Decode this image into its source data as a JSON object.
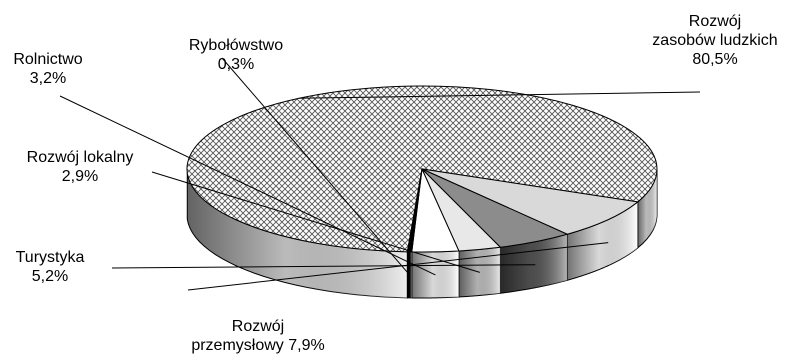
{
  "chart_data": {
    "type": "pie",
    "title": "",
    "slices": [
      {
        "label": "Rozwój zasobów ludzkich",
        "label_lines": [
          "Rozwój",
          "zasobów ludzkich",
          "80,5%"
        ],
        "value": 80.5,
        "value_text": "80,5%",
        "fill": "crosshatch",
        "side_color": "#dcdcdc"
      },
      {
        "label": "Rozwój przemysłowy",
        "label_lines": [
          "Rozwój",
          "przemysłowy 7,9%"
        ],
        "value": 7.9,
        "value_text": "7,9%",
        "fill": "#d9d9d9",
        "side_color": "#ffffff"
      },
      {
        "label": "Turystyka",
        "label_lines": [
          "Turystyka",
          "5,2%"
        ],
        "value": 5.2,
        "value_text": "5,2%",
        "fill": "#8c8c8c",
        "side_color": "#5a5a5a"
      },
      {
        "label": "Rozwój lokalny",
        "label_lines": [
          "Rozwój lokalny",
          "2,9%"
        ],
        "value": 2.9,
        "value_text": "2,9%",
        "fill": "#e8e8e8",
        "side_color": "#d0d0d0"
      },
      {
        "label": "Rolnictwo",
        "label_lines": [
          "Rolnictwo",
          "3,2%"
        ],
        "value": 3.2,
        "value_text": "3,2%",
        "fill": "#ffffff",
        "side_color": "#ffffff"
      },
      {
        "label": "Rybołówstwo",
        "label_lines": [
          "Rybołówstwo",
          "0,3%"
        ],
        "value": 0.3,
        "value_text": "0,3%",
        "fill": "#000000",
        "side_color": "#000000"
      }
    ]
  }
}
